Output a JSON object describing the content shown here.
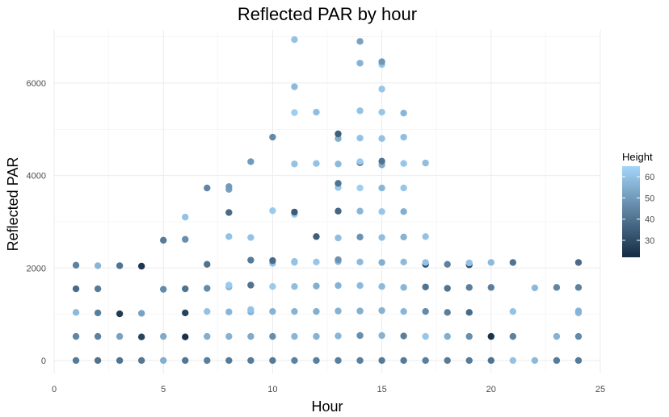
{
  "chart_data": {
    "type": "scatter",
    "title": "Reflected PAR by hour",
    "xlabel": "Hour",
    "ylabel": "Reflected PAR",
    "xlim": [
      0,
      25
    ],
    "ylim": [
      -280,
      7150
    ],
    "x_ticks": [
      0,
      5,
      10,
      15,
      20,
      25
    ],
    "y_ticks": [
      0,
      2000,
      4000,
      6000
    ],
    "grid": true,
    "legend": {
      "title": "Height",
      "placement": "right",
      "type": "colorbar",
      "ticks": [
        30,
        40,
        50,
        60
      ],
      "range": [
        22,
        65
      ],
      "color_low": "#132B43",
      "color_high": "#A4D6FA"
    },
    "points": [
      [
        1,
        0,
        42
      ],
      [
        1,
        520,
        45
      ],
      [
        1,
        1040,
        58
      ],
      [
        1,
        1550,
        38
      ],
      [
        1,
        2060,
        44
      ],
      [
        2,
        0,
        40
      ],
      [
        2,
        520,
        44
      ],
      [
        2,
        1030,
        43
      ],
      [
        2,
        1550,
        42
      ],
      [
        2,
        2050,
        57
      ],
      [
        3,
        0,
        40
      ],
      [
        3,
        520,
        52
      ],
      [
        3,
        1010,
        26
      ],
      [
        3,
        2050,
        40
      ],
      [
        4,
        0,
        41
      ],
      [
        4,
        510,
        28
      ],
      [
        4,
        1020,
        52
      ],
      [
        4,
        2040,
        25
      ],
      [
        5,
        0,
        55
      ],
      [
        5,
        520,
        54
      ],
      [
        5,
        1540,
        46
      ],
      [
        5,
        2600,
        42
      ],
      [
        6,
        0,
        41
      ],
      [
        6,
        510,
        24
      ],
      [
        6,
        1030,
        28
      ],
      [
        6,
        1550,
        40
      ],
      [
        6,
        2620,
        47
      ],
      [
        6,
        3100,
        60
      ],
      [
        7,
        0,
        43
      ],
      [
        7,
        520,
        55
      ],
      [
        7,
        1060,
        60
      ],
      [
        7,
        1560,
        46
      ],
      [
        7,
        2080,
        40
      ],
      [
        7,
        3730,
        45
      ],
      [
        8,
        0,
        42
      ],
      [
        8,
        520,
        56
      ],
      [
        8,
        1050,
        57
      ],
      [
        8,
        1590,
        56
      ],
      [
        8,
        1630,
        62
      ],
      [
        8,
        2680,
        60
      ],
      [
        8,
        3200,
        38
      ],
      [
        8,
        3700,
        52
      ],
      [
        8,
        3760,
        50
      ],
      [
        9,
        0,
        42
      ],
      [
        9,
        520,
        54
      ],
      [
        9,
        1050,
        56
      ],
      [
        9,
        1100,
        60
      ],
      [
        9,
        1630,
        40
      ],
      [
        9,
        2170,
        42
      ],
      [
        9,
        2660,
        60
      ],
      [
        9,
        4300,
        50
      ],
      [
        10,
        0,
        42
      ],
      [
        10,
        520,
        47
      ],
      [
        10,
        1060,
        56
      ],
      [
        10,
        1600,
        62
      ],
      [
        10,
        2100,
        60
      ],
      [
        10,
        2160,
        38
      ],
      [
        10,
        3240,
        62
      ],
      [
        10,
        4830,
        46
      ],
      [
        11,
        0,
        44
      ],
      [
        11,
        520,
        57
      ],
      [
        11,
        1060,
        56
      ],
      [
        11,
        1600,
        59
      ],
      [
        11,
        2120,
        63
      ],
      [
        11,
        2140,
        60
      ],
      [
        11,
        3160,
        62
      ],
      [
        11,
        3210,
        34
      ],
      [
        11,
        4250,
        60
      ],
      [
        11,
        5360,
        63
      ],
      [
        11,
        5920,
        58
      ],
      [
        11,
        6940,
        60
      ],
      [
        12,
        0,
        43
      ],
      [
        12,
        520,
        56
      ],
      [
        12,
        1060,
        55
      ],
      [
        12,
        1610,
        55
      ],
      [
        12,
        2130,
        61
      ],
      [
        12,
        2680,
        35
      ],
      [
        12,
        4260,
        60
      ],
      [
        12,
        5370,
        59
      ],
      [
        13,
        0,
        43
      ],
      [
        13,
        530,
        57
      ],
      [
        13,
        1070,
        56
      ],
      [
        13,
        1620,
        56
      ],
      [
        13,
        2140,
        57
      ],
      [
        13,
        2180,
        48
      ],
      [
        13,
        2650,
        59
      ],
      [
        13,
        3230,
        37
      ],
      [
        13,
        3740,
        62
      ],
      [
        13,
        3830,
        40
      ],
      [
        13,
        4250,
        58
      ],
      [
        13,
        4800,
        55
      ],
      [
        13,
        4900,
        35
      ],
      [
        14,
        0,
        43
      ],
      [
        14,
        540,
        47
      ],
      [
        14,
        1070,
        55
      ],
      [
        14,
        1620,
        58
      ],
      [
        14,
        2130,
        58
      ],
      [
        14,
        2670,
        48
      ],
      [
        14,
        3230,
        57
      ],
      [
        14,
        3730,
        63
      ],
      [
        14,
        4280,
        28
      ],
      [
        14,
        4300,
        62
      ],
      [
        14,
        4810,
        60
      ],
      [
        14,
        5400,
        60
      ],
      [
        14,
        6430,
        56
      ],
      [
        14,
        6900,
        52
      ],
      [
        15,
        0,
        42
      ],
      [
        15,
        540,
        56
      ],
      [
        15,
        1080,
        56
      ],
      [
        15,
        1600,
        58
      ],
      [
        15,
        2120,
        55
      ],
      [
        15,
        2660,
        59
      ],
      [
        15,
        3220,
        61
      ],
      [
        15,
        3730,
        57
      ],
      [
        15,
        4230,
        55
      ],
      [
        15,
        4310,
        40
      ],
      [
        15,
        4800,
        60
      ],
      [
        15,
        5370,
        61
      ],
      [
        15,
        5870,
        61
      ],
      [
        15,
        6400,
        61
      ],
      [
        15,
        6460,
        49
      ],
      [
        16,
        0,
        42
      ],
      [
        16,
        530,
        43
      ],
      [
        16,
        1060,
        57
      ],
      [
        16,
        1580,
        57
      ],
      [
        16,
        2130,
        58
      ],
      [
        16,
        2670,
        56
      ],
      [
        16,
        3220,
        55
      ],
      [
        16,
        3730,
        61
      ],
      [
        16,
        4260,
        61
      ],
      [
        16,
        4830,
        59
      ],
      [
        16,
        5350,
        57
      ],
      [
        17,
        0,
        43
      ],
      [
        17,
        520,
        61
      ],
      [
        17,
        1060,
        46
      ],
      [
        17,
        1590,
        40
      ],
      [
        17,
        2080,
        29
      ],
      [
        17,
        2120,
        60
      ],
      [
        17,
        2680,
        60
      ],
      [
        17,
        4270,
        59
      ],
      [
        18,
        0,
        42
      ],
      [
        18,
        520,
        55
      ],
      [
        18,
        1040,
        43
      ],
      [
        18,
        1560,
        40
      ],
      [
        18,
        2080,
        44
      ],
      [
        19,
        0,
        42
      ],
      [
        19,
        520,
        47
      ],
      [
        19,
        1040,
        38
      ],
      [
        19,
        1580,
        43
      ],
      [
        19,
        2070,
        31
      ],
      [
        19,
        2110,
        60
      ],
      [
        20,
        0,
        40
      ],
      [
        20,
        520,
        24
      ],
      [
        20,
        1580,
        43
      ],
      [
        20,
        2120,
        58
      ],
      [
        21,
        0,
        60
      ],
      [
        21,
        520,
        44
      ],
      [
        21,
        1060,
        60
      ],
      [
        21,
        2120,
        40
      ],
      [
        22,
        0,
        58
      ],
      [
        22,
        1570,
        58
      ],
      [
        23,
        0,
        42
      ],
      [
        23,
        520,
        56
      ],
      [
        23,
        1580,
        45
      ],
      [
        24,
        0,
        42
      ],
      [
        24,
        520,
        46
      ],
      [
        24,
        1030,
        58
      ],
      [
        24,
        1070,
        56
      ],
      [
        24,
        1580,
        44
      ],
      [
        24,
        2120,
        38
      ]
    ]
  }
}
